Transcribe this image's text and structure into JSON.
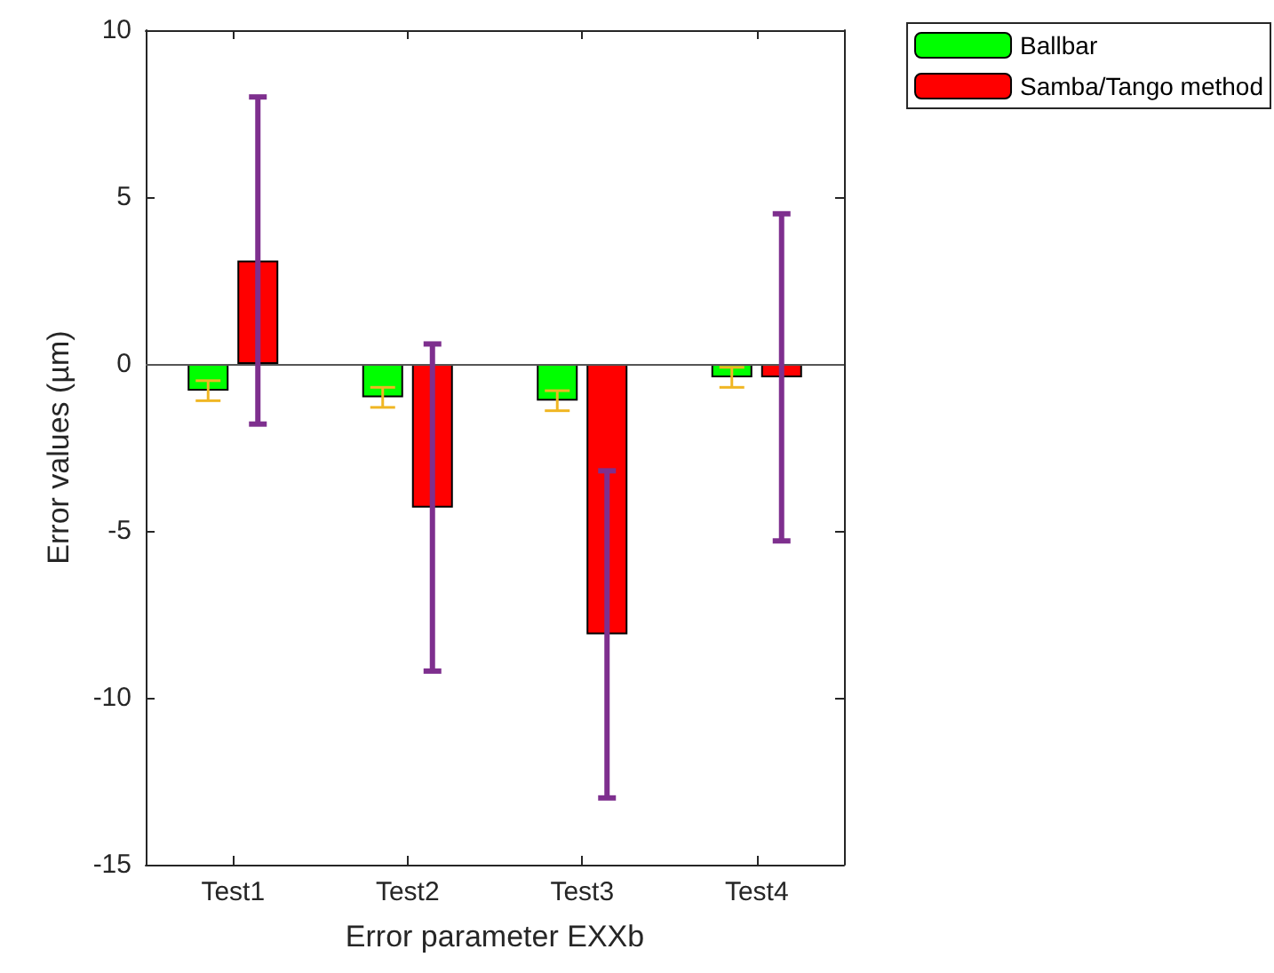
{
  "chart_data": {
    "type": "bar",
    "xlabel": "Error parameter EXXb",
    "ylabel": "Error values (µm)",
    "categories": [
      "Test1",
      "Test2",
      "Test3",
      "Test4"
    ],
    "series": [
      {
        "name": "Ballbar",
        "color": "#00ff00",
        "values": [
          -0.8,
          -1.0,
          -1.1,
          -0.4
        ],
        "errors": [
          0.3,
          0.3,
          0.3,
          0.3
        ]
      },
      {
        "name": "Samba/Tango method",
        "color": "#ff0000",
        "values": [
          3.1,
          -4.3,
          -8.1,
          -0.4
        ],
        "errors": [
          4.9,
          4.9,
          4.9,
          4.9
        ]
      }
    ],
    "ylim": [
      -15,
      10
    ],
    "yticks": [
      -15,
      -10,
      -5,
      0,
      5,
      10
    ],
    "ref_lines": [
      {
        "axis": "y",
        "value": 0,
        "color": "#555555"
      }
    ],
    "grid": false,
    "legend": "top right"
  }
}
